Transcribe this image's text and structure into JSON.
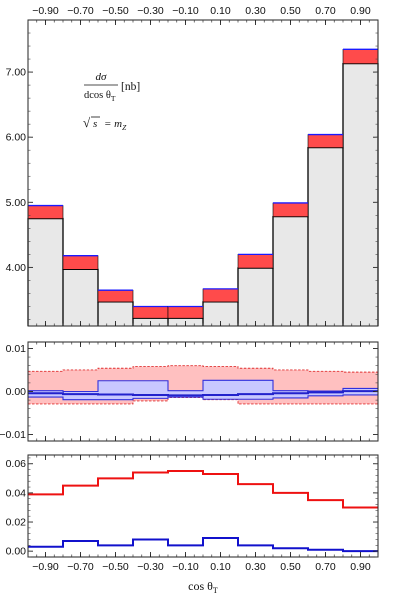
{
  "chart_data": [
    {
      "type": "histogram",
      "panel": "top",
      "x_edges": [
        -1.0,
        -0.8,
        -0.6,
        -0.4,
        -0.2,
        0.0,
        0.2,
        0.4,
        0.6,
        0.8,
        1.0
      ],
      "top_tick_labels": [
        "−0.90",
        "−0.70",
        "−0.50",
        "−0.30",
        "−0.10",
        "0.10",
        "0.30",
        "0.50",
        "0.70",
        "0.90"
      ],
      "y_tick_labels": [
        "4.00",
        "5.00",
        "6.00",
        "7.00"
      ],
      "y_ticks": [
        4,
        5,
        6,
        7
      ],
      "ylim": [
        3.1,
        7.8
      ],
      "series": [
        {
          "values": [
            4.75,
            3.97,
            3.47,
            3.22,
            3.22,
            3.47,
            3.99,
            4.78,
            5.84,
            7.13
          ],
          "color": "#e8e8e8",
          "style": "filled-black-outline"
        },
        {
          "values": [
            4.95,
            4.18,
            3.65,
            3.4,
            3.4,
            3.67,
            4.2,
            4.99,
            6.04,
            7.35
          ],
          "color": "#ff4b4b",
          "edge": "#1a1aff",
          "style": "band"
        }
      ],
      "annotation": {
        "numerator": "dσ",
        "denominator": "dcos θ",
        "denominator_sub": "T",
        "unit": "[nb]",
        "sqrt_lhs": "s",
        "rhs": "= m",
        "rhs_sub": "Z"
      }
    },
    {
      "type": "histogram",
      "panel": "middle",
      "x_edges": [
        -1.0,
        -0.8,
        -0.6,
        -0.4,
        -0.2,
        0.0,
        0.2,
        0.4,
        0.6,
        0.8,
        1.0
      ],
      "y_tick_labels": [
        "−0.01",
        "0.00",
        "0.01"
      ],
      "y_ticks": [
        -0.01,
        0.0,
        0.01
      ],
      "ylim": [
        -0.0115,
        0.0115
      ],
      "series": [
        {
          "upper": [
            0.0047,
            0.005,
            0.0054,
            0.0058,
            0.006,
            0.0058,
            0.0054,
            0.005,
            0.0047,
            0.0045
          ],
          "lower": [
            -0.0029,
            -0.0029,
            -0.0029,
            -0.0022,
            -0.0014,
            -0.0019,
            -0.0029,
            -0.0029,
            -0.0029,
            -0.0029
          ],
          "color": "#ffc0c0",
          "edge": "#e03030",
          "style": "dashed-band"
        },
        {
          "upper": [
            0.0002,
            0.0,
            0.0025,
            0.0025,
            0.0002,
            0.0026,
            0.0026,
            0.0002,
            0.0001,
            0.0007
          ],
          "lower": [
            -0.0013,
            -0.0019,
            -0.0019,
            -0.0016,
            -0.0013,
            -0.0018,
            -0.0018,
            -0.0015,
            -0.001,
            -0.0008
          ],
          "color": "#c8c8ff",
          "edge": "#3030dd",
          "style": "band"
        },
        {
          "values": [
            -0.0004,
            -0.0006,
            -0.0007,
            -0.0008,
            -0.0009,
            -0.0008,
            -0.0006,
            -0.0004,
            -0.0002,
            0.0001
          ],
          "color": "#2222cc",
          "style": "step"
        }
      ]
    },
    {
      "type": "histogram",
      "panel": "bottom",
      "x_edges": [
        -1.0,
        -0.8,
        -0.6,
        -0.4,
        -0.2,
        0.0,
        0.2,
        0.4,
        0.6,
        0.8,
        1.0
      ],
      "y_tick_labels": [
        "0.00",
        "0.02",
        "0.04",
        "0.06"
      ],
      "y_ticks": [
        0.0,
        0.02,
        0.04,
        0.06
      ],
      "bottom_tick_labels": [
        "−0.90",
        "−0.70",
        "−0.50",
        "−0.30",
        "−0.10",
        "0.10",
        "0.30",
        "0.50",
        "0.70",
        "0.90"
      ],
      "ylim": [
        -0.004,
        0.066
      ],
      "xlabel": "cos θ",
      "xlabel_sub": "T",
      "series": [
        {
          "values": [
            0.039,
            0.045,
            0.05,
            0.054,
            0.055,
            0.053,
            0.046,
            0.04,
            0.035,
            0.03
          ],
          "color": "#ee1111",
          "style": "step"
        },
        {
          "values": [
            0.003,
            0.007,
            0.004,
            0.008,
            0.004,
            0.009,
            0.004,
            0.002,
            0.001,
            0.0
          ],
          "color": "#1111cc",
          "style": "step"
        }
      ]
    }
  ]
}
